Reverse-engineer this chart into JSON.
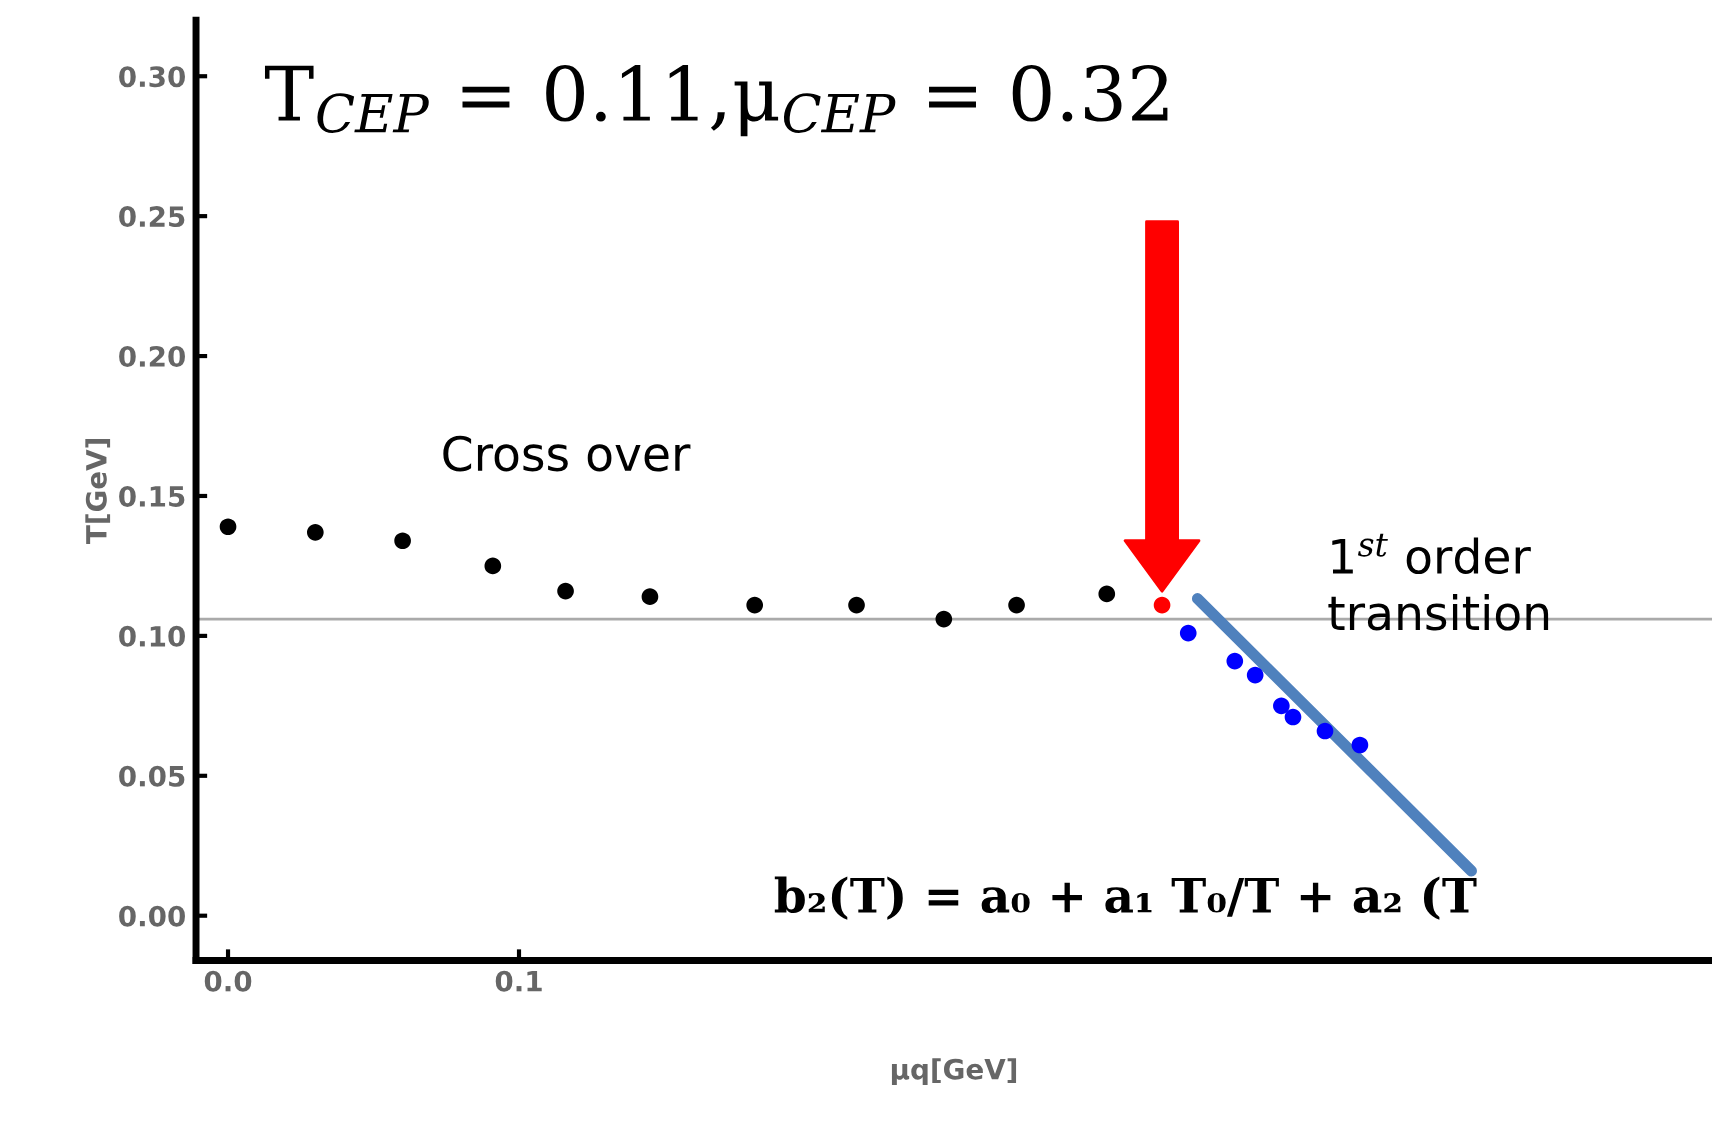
{
  "chart_data": {
    "type": "scatter",
    "title": "T$_{CEP}$ = 0.11,μ$_{CEP}$ = 0.32",
    "xlabel": "μq[GeV]",
    "ylabel": "T[GeV]",
    "xlim": [
      -0.011,
      0.51
    ],
    "ylim": [
      -0.016,
      0.32
    ],
    "xticks": [
      {
        "value": 0.0,
        "label": "0.0"
      },
      {
        "value": 0.1,
        "label": "0.1"
      }
    ],
    "yticks": [
      {
        "value": 0.0,
        "label": "0.00"
      },
      {
        "value": 0.05,
        "label": "0.05"
      },
      {
        "value": 0.1,
        "label": "0.10"
      },
      {
        "value": 0.15,
        "label": "0.15"
      },
      {
        "value": 0.2,
        "label": "0.20"
      },
      {
        "value": 0.25,
        "label": "0.25"
      },
      {
        "value": 0.3,
        "label": "0.30"
      }
    ],
    "grid": false,
    "marker": "circle",
    "series": [
      {
        "name": "Cross over",
        "color": "#000000",
        "x": [
          0.0,
          0.03,
          0.06,
          0.091,
          0.116,
          0.145,
          0.181,
          0.216,
          0.246,
          0.271,
          0.302
        ],
        "values": [
          0.139,
          0.137,
          0.134,
          0.125,
          0.116,
          0.114,
          0.111,
          0.111,
          0.106,
          0.111,
          0.115
        ]
      },
      {
        "color": "#ff0000",
        "x": [
          0.321
        ],
        "values": [
          0.111
        ]
      },
      {
        "name": "1$^{st}$ order\ntransition",
        "color": "#0000ff",
        "x": [
          0.33,
          0.346,
          0.353,
          0.362,
          0.366,
          0.377,
          0.389
        ],
        "values": [
          0.101,
          0.091,
          0.086,
          0.075,
          0.071,
          0.066,
          0.061
        ]
      }
    ],
    "ref_lines": [
      {
        "axis": "y",
        "value": 0.106,
        "color": "#aaaaaa"
      }
    ],
    "annotations": [
      "b₂(T) = a₀ + a₁ T₀/T + a₂ (T"
    ]
  }
}
